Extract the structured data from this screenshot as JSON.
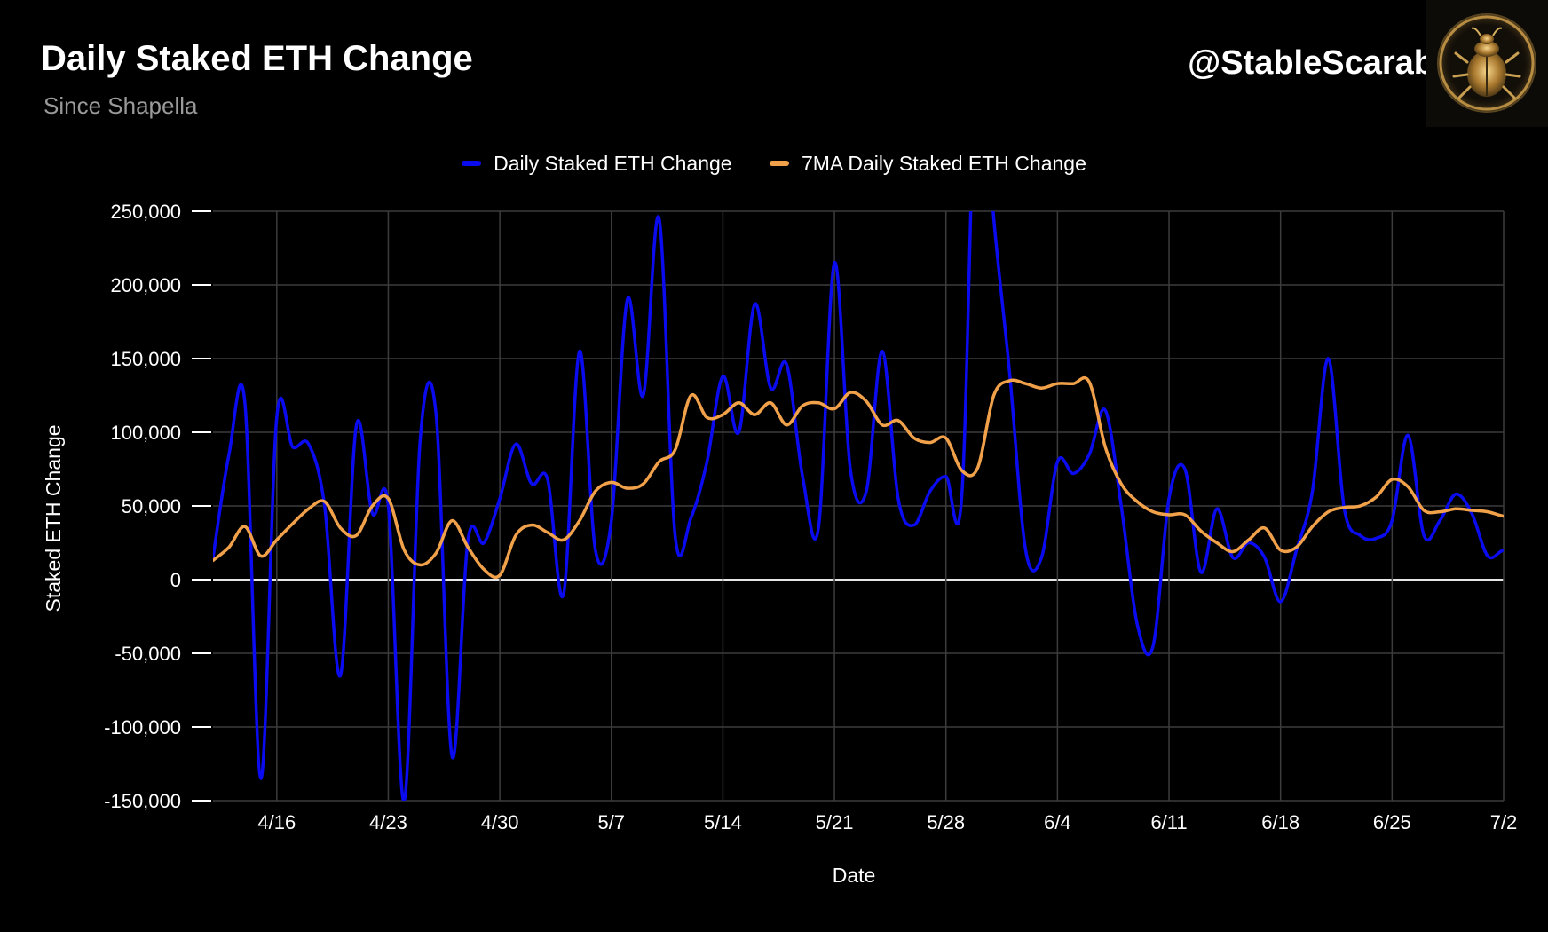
{
  "header": {
    "title": "Daily Staked ETH Change",
    "subtitle": "Since Shapella",
    "brand": "@StableScarab"
  },
  "colors": {
    "background": "#000000",
    "daily": "#0b0bf0",
    "ma7": "#f2a14b",
    "grid": "#3c3c3c",
    "zero_line": "#e6e6e6"
  },
  "chart_data": {
    "type": "line",
    "xlabel": "Date",
    "ylabel": "Staked ETH Change",
    "ylim": [
      -150000,
      250000
    ],
    "yticks": [
      250000,
      200000,
      150000,
      100000,
      50000,
      0,
      -50000,
      -100000,
      -150000
    ],
    "ytick_labels": [
      "250,000",
      "200,000",
      "150,000",
      "100,000",
      "50,000",
      "0",
      "-50,000",
      "-100,000",
      "-150,000"
    ],
    "xlim": [
      "2023-04-12",
      "2023-07-02"
    ],
    "xticks": [
      "2023-04-16",
      "2023-04-23",
      "2023-04-30",
      "2023-05-07",
      "2023-05-14",
      "2023-05-21",
      "2023-05-28",
      "2023-06-04",
      "2023-06-11",
      "2023-06-18",
      "2023-06-25",
      "2023-07-02"
    ],
    "xtick_labels": [
      "4/16",
      "4/23",
      "4/30",
      "5/7",
      "5/14",
      "5/21",
      "5/28",
      "6/4",
      "6/11",
      "6/18",
      "6/25",
      "7/2"
    ],
    "grid": true,
    "legend_position": "top",
    "series": [
      {
        "name": "Daily Staked ETH Change",
        "x": [
          "2023-04-12",
          "2023-04-13",
          "2023-04-14",
          "2023-04-15",
          "2023-04-16",
          "2023-04-17",
          "2023-04-18",
          "2023-04-19",
          "2023-04-20",
          "2023-04-21",
          "2023-04-22",
          "2023-04-23",
          "2023-04-24",
          "2023-04-25",
          "2023-04-26",
          "2023-04-27",
          "2023-04-28",
          "2023-04-29",
          "2023-04-30",
          "2023-05-01",
          "2023-05-02",
          "2023-05-03",
          "2023-05-04",
          "2023-05-05",
          "2023-05-06",
          "2023-05-07",
          "2023-05-08",
          "2023-05-09",
          "2023-05-10",
          "2023-05-11",
          "2023-05-12",
          "2023-05-13",
          "2023-05-14",
          "2023-05-15",
          "2023-05-16",
          "2023-05-17",
          "2023-05-18",
          "2023-05-19",
          "2023-05-20",
          "2023-05-21",
          "2023-05-22",
          "2023-05-23",
          "2023-05-24",
          "2023-05-25",
          "2023-05-26",
          "2023-05-27",
          "2023-05-28",
          "2023-05-29",
          "2023-05-30",
          "2023-05-31",
          "2023-06-01",
          "2023-06-02",
          "2023-06-03",
          "2023-06-04",
          "2023-06-05",
          "2023-06-06",
          "2023-06-07",
          "2023-06-08",
          "2023-06-09",
          "2023-06-10",
          "2023-06-11",
          "2023-06-12",
          "2023-06-13",
          "2023-06-14",
          "2023-06-15",
          "2023-06-16",
          "2023-06-17",
          "2023-06-18",
          "2023-06-19",
          "2023-06-20",
          "2023-06-21",
          "2023-06-22",
          "2023-06-23",
          "2023-06-24",
          "2023-06-25",
          "2023-06-26",
          "2023-06-27",
          "2023-06-28",
          "2023-06-29",
          "2023-06-30",
          "2023-07-01",
          "2023-07-02",
          "2023-07-03"
        ],
        "values": [
          15000,
          85000,
          120000,
          -135000,
          110000,
          90000,
          92000,
          50000,
          -65000,
          105000,
          45000,
          50000,
          -150000,
          95000,
          112000,
          -120000,
          27000,
          25000,
          55000,
          92000,
          65000,
          68000,
          -10000,
          155000,
          20000,
          40000,
          190000,
          125000,
          245000,
          30000,
          42000,
          80000,
          138000,
          100000,
          187000,
          130000,
          146000,
          70000,
          35000,
          215000,
          75000,
          60000,
          155000,
          55000,
          37000,
          60000,
          70000,
          58000,
          380000,
          245000,
          140000,
          20000,
          15000,
          80000,
          72000,
          85000,
          115000,
          50000,
          -30000,
          -45000,
          55000,
          75000,
          5000,
          48000,
          15000,
          25000,
          15000,
          -15000,
          20000,
          60000,
          150000,
          48000,
          30000,
          28000,
          40000,
          98000,
          30000,
          40000,
          58000,
          45000,
          16000,
          20000,
          18000
        ]
      },
      {
        "name": "7MA Daily Staked ETH Change",
        "x": [
          "2023-04-12",
          "2023-04-13",
          "2023-04-14",
          "2023-04-15",
          "2023-04-16",
          "2023-04-17",
          "2023-04-18",
          "2023-04-19",
          "2023-04-20",
          "2023-04-21",
          "2023-04-22",
          "2023-04-23",
          "2023-04-24",
          "2023-04-25",
          "2023-04-26",
          "2023-04-27",
          "2023-04-28",
          "2023-04-29",
          "2023-04-30",
          "2023-05-01",
          "2023-05-02",
          "2023-05-03",
          "2023-05-04",
          "2023-05-05",
          "2023-05-06",
          "2023-05-07",
          "2023-05-08",
          "2023-05-09",
          "2023-05-10",
          "2023-05-11",
          "2023-05-12",
          "2023-05-13",
          "2023-05-14",
          "2023-05-15",
          "2023-05-16",
          "2023-05-17",
          "2023-05-18",
          "2023-05-19",
          "2023-05-20",
          "2023-05-21",
          "2023-05-22",
          "2023-05-23",
          "2023-05-24",
          "2023-05-25",
          "2023-05-26",
          "2023-05-27",
          "2023-05-28",
          "2023-05-29",
          "2023-05-30",
          "2023-05-31",
          "2023-06-01",
          "2023-06-02",
          "2023-06-03",
          "2023-06-04",
          "2023-06-05",
          "2023-06-06",
          "2023-06-07",
          "2023-06-08",
          "2023-06-09",
          "2023-06-10",
          "2023-06-11",
          "2023-06-12",
          "2023-06-13",
          "2023-06-14",
          "2023-06-15",
          "2023-06-16",
          "2023-06-17",
          "2023-06-18",
          "2023-06-19",
          "2023-06-20",
          "2023-06-21",
          "2023-06-22",
          "2023-06-23",
          "2023-06-24",
          "2023-06-25",
          "2023-06-26",
          "2023-06-27",
          "2023-06-28",
          "2023-06-29",
          "2023-06-30",
          "2023-07-01",
          "2023-07-02",
          "2023-07-03"
        ],
        "values": [
          13000,
          22000,
          36000,
          16000,
          27000,
          38000,
          48000,
          53000,
          35000,
          30000,
          50000,
          55000,
          20000,
          10000,
          18000,
          40000,
          22000,
          7000,
          3000,
          30000,
          37000,
          32000,
          27000,
          40000,
          60000,
          66000,
          62000,
          65000,
          80000,
          88000,
          125000,
          110000,
          112000,
          120000,
          112000,
          120000,
          105000,
          118000,
          120000,
          116000,
          127000,
          121000,
          105000,
          108000,
          96000,
          93000,
          96000,
          74000,
          76000,
          125000,
          135000,
          133000,
          130000,
          133000,
          133000,
          134000,
          90000,
          65000,
          53000,
          46000,
          44000,
          44000,
          33000,
          25000,
          19000,
          27000,
          35000,
          20000,
          22000,
          36000,
          46000,
          49000,
          50000,
          56000,
          68000,
          63000,
          47000,
          46000,
          48000,
          47000,
          46000,
          43000,
          42000
        ]
      }
    ]
  }
}
